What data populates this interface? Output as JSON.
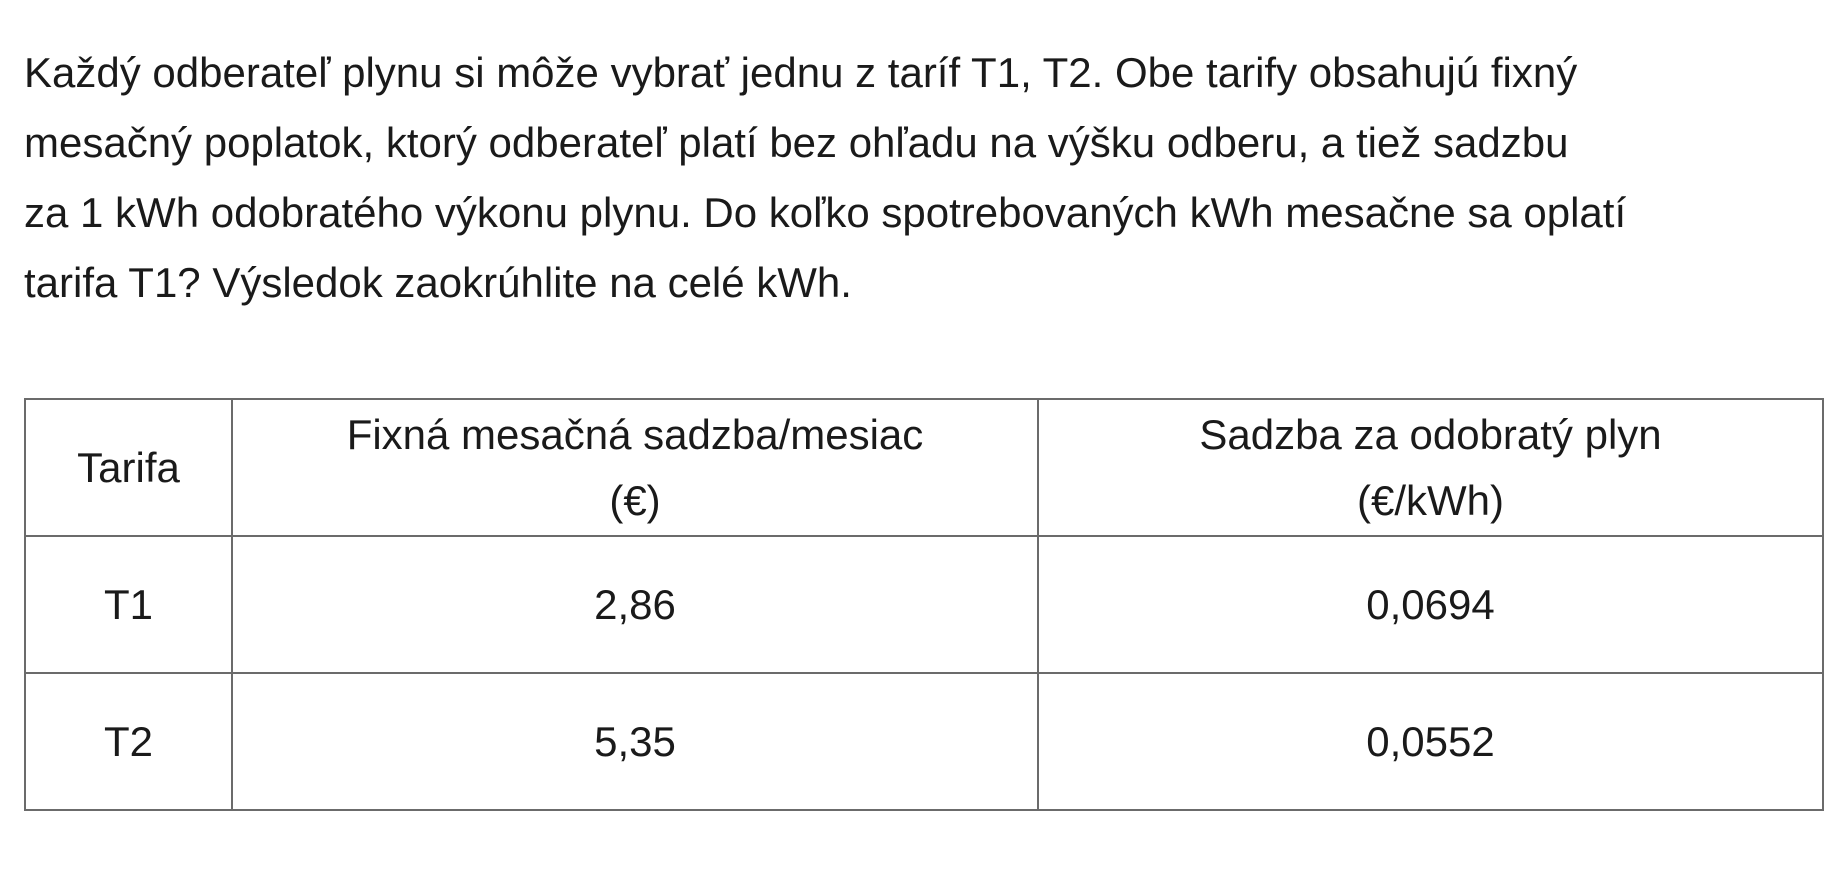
{
  "problem": {
    "lines": [
      "Každý odberateľ plynu si môže vybrať jednu z taríf T1, T2. Obe tarify obsahujú fixný",
      "mesačný poplatok, ktorý odberateľ platí bez ohľadu na výšku odberu, a tiež sadzbu",
      "za 1 kWh odobratého výkonu plynu. Do koľko spotrebovaných kWh mesačne sa oplatí",
      "tarifa T1? Výsledok zaokrúhlite na celé kWh."
    ]
  },
  "table": {
    "headers": {
      "tariff": "Tarifa",
      "fixed_line1": "Fixná mesačná sadzba/mesiac",
      "fixed_line2": "(€)",
      "rate_line1": "Sadzba za odobratý plyn",
      "rate_line2": "(€/kWh)"
    },
    "rows": [
      {
        "tariff": "T1",
        "fixed": "2,86",
        "rate": "0,0694"
      },
      {
        "tariff": "T2",
        "fixed": "5,35",
        "rate": "0,0552"
      }
    ]
  }
}
